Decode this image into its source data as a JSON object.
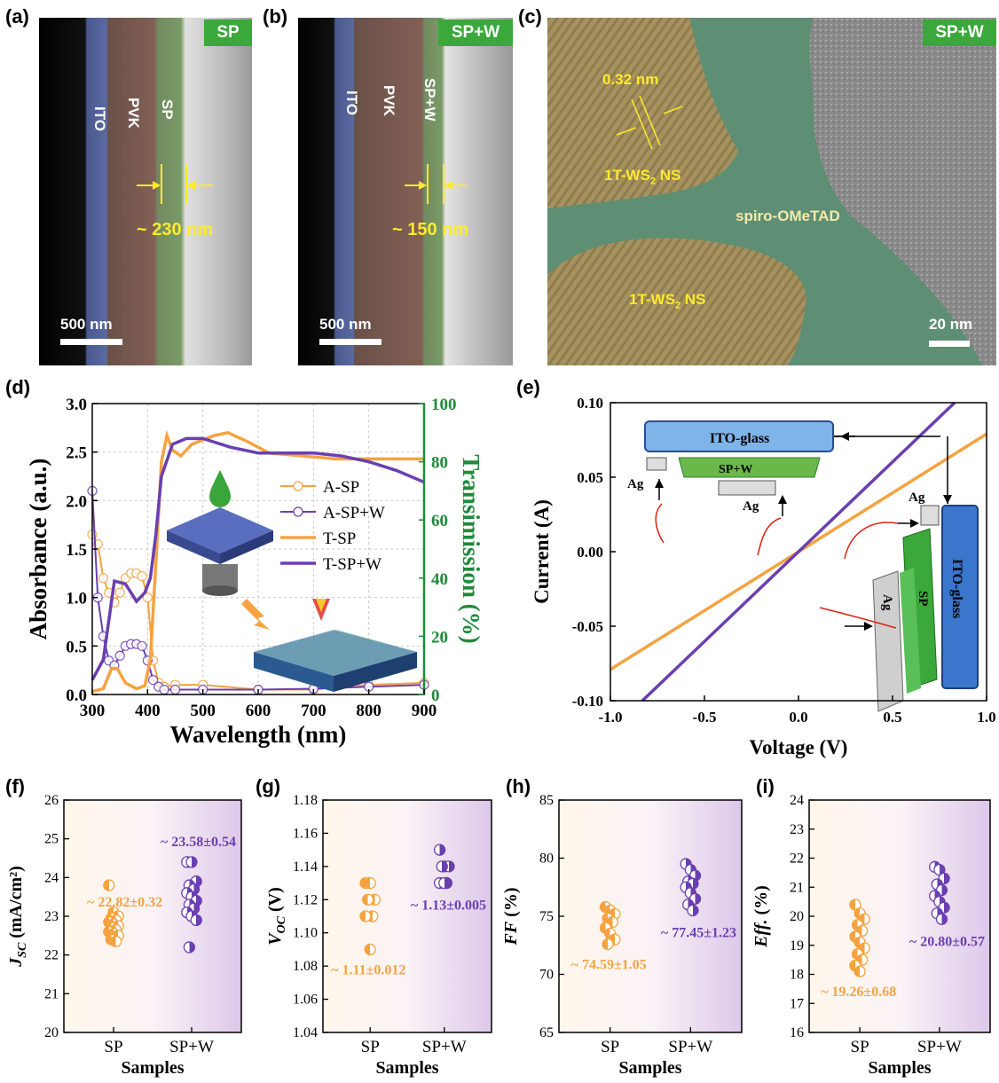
{
  "panels": {
    "a": {
      "label": "(a)",
      "tag": "SP",
      "layers": [
        "ITO",
        "PVK",
        "SP"
      ],
      "thickness": "~ 230 nm",
      "scale": "500 nm"
    },
    "b": {
      "label": "(b)",
      "tag": "SP+W",
      "layers": [
        "ITO",
        "PVK",
        "SP+W"
      ],
      "thickness": "~ 150 nm",
      "scale": "500 nm"
    },
    "c": {
      "label": "(c)",
      "tag": "SP+W",
      "spacing": "0.32 nm",
      "ns1": "1T-WS",
      "ns1_sub": "2",
      "ns1_suffix": " NS",
      "ns2": "1T-WS",
      "ns2_sub": "2",
      "ns2_suffix": " NS",
      "matrix": "spiro-OMeTAD",
      "scale": "20 nm"
    },
    "d": {
      "label": "(d)"
    },
    "e": {
      "label": "(e)"
    },
    "f": {
      "label": "(f)"
    },
    "g": {
      "label": "(g)"
    },
    "h": {
      "label": "(h)"
    },
    "i": {
      "label": "(i)"
    }
  },
  "colors": {
    "sp": "#f5a340",
    "spw": "#6a3fb0",
    "green": "#1e8a3a",
    "tagbg": "#3aa83a",
    "yellow": "#ffea2a"
  },
  "chart_data": [
    {
      "id": "d",
      "type": "line",
      "xlabel": "Wavelength (nm)",
      "ylabel": "Absorbance (a.u.)",
      "y2label": "Transimission (%)",
      "xlim": [
        300,
        900
      ],
      "ylim": [
        0,
        3.0
      ],
      "y2lim": [
        0,
        100
      ],
      "xticks": [
        300,
        400,
        500,
        600,
        700,
        800,
        900
      ],
      "yticks": [
        "0.0",
        "0.5",
        "1.0",
        "1.5",
        "2.0",
        "2.5",
        "3.0"
      ],
      "y2ticks": [
        0,
        20,
        40,
        60,
        80,
        100
      ],
      "grid": true,
      "legend": "center-right",
      "series": [
        {
          "name": "A-SP",
          "axis": "left",
          "marker": "circle",
          "x": [
            300,
            310,
            320,
            330,
            340,
            350,
            360,
            370,
            380,
            390,
            400,
            410,
            420,
            430,
            450,
            500,
            600,
            700,
            800,
            900
          ],
          "y": [
            1.65,
            1.55,
            1.2,
            1.05,
            0.95,
            1.05,
            1.2,
            1.25,
            1.25,
            1.22,
            1.0,
            0.35,
            0.12,
            0.08,
            0.1,
            0.1,
            0.05,
            0.05,
            0.1,
            0.12
          ]
        },
        {
          "name": "A-SP+W",
          "axis": "left",
          "marker": "circle",
          "x": [
            300,
            310,
            320,
            330,
            340,
            350,
            360,
            370,
            380,
            390,
            400,
            410,
            420,
            430,
            450,
            500,
            600,
            700,
            800,
            900
          ],
          "y": [
            2.1,
            1.0,
            0.6,
            0.35,
            0.3,
            0.4,
            0.5,
            0.52,
            0.52,
            0.5,
            0.35,
            0.15,
            0.08,
            0.05,
            0.05,
            0.05,
            0.05,
            0.06,
            0.08,
            0.1
          ]
        },
        {
          "name": "T-SP",
          "axis": "right",
          "x": [
            300,
            320,
            335,
            345,
            360,
            380,
            395,
            405,
            415,
            425,
            435,
            445,
            460,
            480,
            520,
            545,
            580,
            620,
            680,
            740,
            800,
            900
          ],
          "y": [
            1,
            2,
            9,
            9,
            4,
            2,
            3,
            12,
            45,
            80,
            89,
            84,
            82,
            86,
            89,
            90,
            87,
            83,
            82,
            81,
            81,
            81
          ]
        },
        {
          "name": "T-SP+W",
          "axis": "right",
          "x": [
            300,
            320,
            340,
            360,
            380,
            395,
            405,
            415,
            425,
            445,
            470,
            500,
            550,
            600,
            650,
            700,
            750,
            800,
            850,
            900
          ],
          "y": [
            5,
            12,
            39,
            38,
            32,
            35,
            40,
            55,
            75,
            86,
            88,
            88,
            85,
            83,
            83,
            83,
            82,
            80,
            77,
            73
          ]
        }
      ]
    },
    {
      "id": "e",
      "type": "line",
      "xlabel": "Voltage (V)",
      "ylabel": "Current (A)",
      "xlim": [
        -1.0,
        1.0
      ],
      "ylim": [
        -0.1,
        0.1
      ],
      "xticks": [
        "-1.0",
        "-0.5",
        "0.0",
        "0.5",
        "1.0"
      ],
      "yticks": [
        "-0.10",
        "-0.05",
        "0.00",
        "0.05",
        "0.10"
      ],
      "series": [
        {
          "name": "",
          "color_key": "sp",
          "x": [
            -1.0,
            1.0
          ],
          "y": [
            -0.079,
            0.079
          ]
        },
        {
          "name": "",
          "color_key": "spw",
          "x": [
            -0.83,
            0.83
          ],
          "y": [
            -0.1,
            0.1
          ]
        }
      ],
      "inset_labels": [
        "ITO-glass",
        "SP+W",
        "Ag",
        "Ag",
        "Ag",
        "SP",
        "Ag",
        "ITO-glass"
      ]
    },
    {
      "id": "f",
      "type": "scatter",
      "xlabel": "Samples",
      "ylabel": "J",
      "ylabel_sub": "SC",
      "ylabel_unit": " (mA/cm²)",
      "categories": [
        "SP",
        "SP+W"
      ],
      "ylim": [
        20,
        26
      ],
      "yticks": [
        20,
        21,
        22,
        23,
        24,
        25,
        26
      ],
      "series": [
        {
          "category": "SP",
          "values": [
            23.8,
            23.1,
            23.0,
            22.95,
            22.9,
            22.85,
            22.8,
            22.75,
            22.7,
            22.65,
            22.6,
            22.55,
            22.5,
            22.4,
            22.35
          ],
          "annotation": "~ 22.82±0.32"
        },
        {
          "category": "SP+W",
          "values": [
            24.4,
            24.4,
            23.9,
            23.8,
            23.7,
            23.6,
            23.5,
            23.4,
            23.3,
            23.2,
            23.1,
            23.0,
            22.9,
            22.2
          ],
          "annotation": "~ 23.58±0.54"
        }
      ]
    },
    {
      "id": "g",
      "type": "scatter",
      "xlabel": "Samples",
      "ylabel": "V",
      "ylabel_sub": "OC",
      "ylabel_unit": " (V)",
      "categories": [
        "SP",
        "SP+W"
      ],
      "ylim": [
        1.04,
        1.18
      ],
      "yticks": [
        "1.04",
        "1.06",
        "1.08",
        "1.10",
        "1.12",
        "1.14",
        "1.16",
        "1.18"
      ],
      "series": [
        {
          "category": "SP",
          "values": [
            1.13,
            1.13,
            1.12,
            1.12,
            1.11,
            1.11,
            1.09
          ],
          "annotation": "~ 1.11±0.012"
        },
        {
          "category": "SP+W",
          "values": [
            1.15,
            1.14,
            1.14,
            1.14,
            1.13,
            1.13,
            1.13
          ],
          "annotation": "~ 1.13±0.005"
        }
      ]
    },
    {
      "id": "h",
      "type": "scatter",
      "xlabel": "Samples",
      "ylabel": "FF",
      "ylabel_sub": "",
      "ylabel_unit": " (%)",
      "categories": [
        "SP",
        "SP+W"
      ],
      "ylim": [
        65,
        85
      ],
      "yticks": [
        65,
        70,
        75,
        80,
        85
      ],
      "series": [
        {
          "category": "SP",
          "values": [
            75.8,
            75.5,
            75.2,
            74.8,
            74.5,
            74.0,
            73.5,
            73.0,
            72.6
          ],
          "annotation": "~ 74.59±1.05"
        },
        {
          "category": "SP+W",
          "values": [
            79.5,
            79.0,
            78.5,
            78.0,
            77.8,
            77.5,
            77.0,
            76.5,
            76.0,
            75.5
          ],
          "annotation": "~ 77.45±1.23"
        }
      ]
    },
    {
      "id": "i",
      "type": "scatter",
      "xlabel": "Samples",
      "ylabel": "Eff.",
      "ylabel_sub": "",
      "ylabel_unit": " (%)",
      "categories": [
        "SP",
        "SP+W"
      ],
      "ylim": [
        16,
        24
      ],
      "yticks": [
        16,
        17,
        18,
        19,
        20,
        21,
        22,
        23,
        24
      ],
      "series": [
        {
          "category": "SP",
          "values": [
            20.4,
            20.1,
            19.9,
            19.7,
            19.5,
            19.3,
            19.1,
            18.9,
            18.7,
            18.5,
            18.3,
            18.1
          ],
          "annotation": "~ 19.26±0.68"
        },
        {
          "category": "SP+W",
          "values": [
            21.7,
            21.6,
            21.3,
            21.1,
            20.9,
            20.7,
            20.5,
            20.3,
            20.1,
            19.9
          ],
          "annotation": "~ 20.80±0.57"
        }
      ]
    }
  ]
}
